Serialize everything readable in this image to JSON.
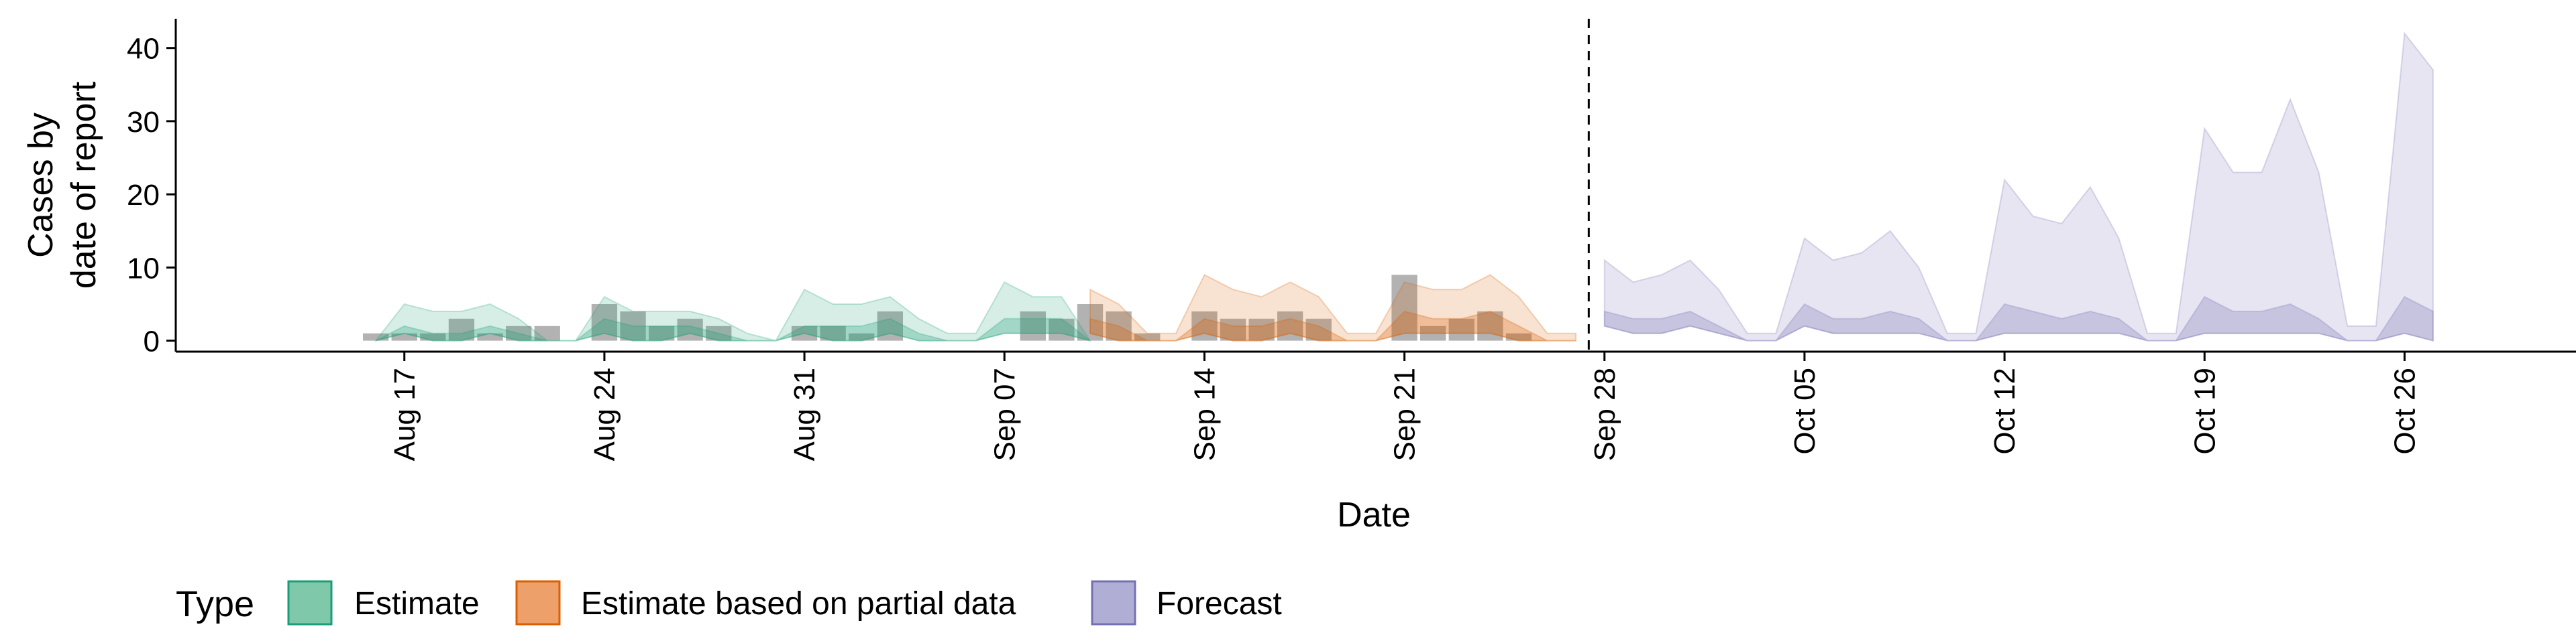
{
  "chart_data": {
    "type": "area",
    "xlabel": "Date",
    "ylabel": [
      "Cases by",
      "date of report"
    ],
    "ylim": [
      -1.5,
      44
    ],
    "yticks": [
      0,
      10,
      20,
      30,
      40
    ],
    "x_range": [
      "2020-08-09",
      "2020-11-01"
    ],
    "date_ticks": [
      {
        "date": "2020-08-17",
        "label": "Aug 17"
      },
      {
        "date": "2020-08-24",
        "label": "Aug 24"
      },
      {
        "date": "2020-08-31",
        "label": "Aug 31"
      },
      {
        "date": "2020-09-07",
        "label": "Sep 07"
      },
      {
        "date": "2020-09-14",
        "label": "Sep 14"
      },
      {
        "date": "2020-09-21",
        "label": "Sep 21"
      },
      {
        "date": "2020-09-28",
        "label": "Sep 28"
      },
      {
        "date": "2020-10-05",
        "label": "Oct 05"
      },
      {
        "date": "2020-10-12",
        "label": "Oct 12"
      },
      {
        "date": "2020-10-19",
        "label": "Oct 19"
      },
      {
        "date": "2020-10-26",
        "label": "Oct 26"
      }
    ],
    "forecast_date": "2020-09-27",
    "legend": {
      "title": "Type",
      "position": "bottom",
      "items": [
        {
          "label": "Estimate",
          "fill": "#7fc8a9",
          "stroke": "#1b9e77"
        },
        {
          "label": "Estimate based on partial data",
          "fill": "#eda06a",
          "stroke": "#d95f02"
        },
        {
          "label": "Forecast",
          "fill": "#b1aed6",
          "stroke": "#7570b3"
        }
      ]
    },
    "colors": {
      "Estimate": "#1b9e77",
      "Estimate based on partial data": "#d95f02",
      "Forecast": "#7570b3",
      "bars": "#7f7f7f"
    },
    "reported_cases": {
      "dates": [
        "2020-08-16",
        "2020-08-17",
        "2020-08-18",
        "2020-08-19",
        "2020-08-20",
        "2020-08-21",
        "2020-08-22",
        "2020-08-23",
        "2020-08-24",
        "2020-08-25",
        "2020-08-26",
        "2020-08-27",
        "2020-08-28",
        "2020-08-29",
        "2020-08-30",
        "2020-08-31",
        "2020-09-01",
        "2020-09-02",
        "2020-09-03",
        "2020-09-04",
        "2020-09-05",
        "2020-09-06",
        "2020-09-07",
        "2020-09-08",
        "2020-09-09",
        "2020-09-10",
        "2020-09-11",
        "2020-09-12",
        "2020-09-13",
        "2020-09-14",
        "2020-09-15",
        "2020-09-16",
        "2020-09-17",
        "2020-09-18",
        "2020-09-19",
        "2020-09-20",
        "2020-09-21",
        "2020-09-22",
        "2020-09-23",
        "2020-09-24",
        "2020-09-25",
        "2020-09-26"
      ],
      "values": [
        1,
        1,
        1,
        3,
        1,
        2,
        2,
        0,
        5,
        4,
        2,
        3,
        2,
        0,
        0,
        2,
        2,
        1,
        4,
        0,
        0,
        0,
        0,
        4,
        3,
        5,
        4,
        1,
        0,
        4,
        3,
        3,
        4,
        3,
        0,
        0,
        9,
        2,
        3,
        4,
        1,
        0
      ]
    },
    "series": [
      {
        "name": "Estimate",
        "dates": [
          "2020-08-16",
          "2020-08-17",
          "2020-08-18",
          "2020-08-19",
          "2020-08-20",
          "2020-08-21",
          "2020-08-22",
          "2020-08-23",
          "2020-08-24",
          "2020-08-25",
          "2020-08-26",
          "2020-08-27",
          "2020-08-28",
          "2020-08-29",
          "2020-08-30",
          "2020-08-31",
          "2020-09-01",
          "2020-09-02",
          "2020-09-03",
          "2020-09-04",
          "2020-09-05",
          "2020-09-06",
          "2020-09-07",
          "2020-09-08",
          "2020-09-09",
          "2020-09-10"
        ],
        "upper90": [
          0,
          5,
          4,
          4,
          5,
          3,
          0,
          0,
          6,
          4,
          4,
          4,
          3,
          1,
          0,
          7,
          5,
          5,
          6,
          3,
          1,
          1,
          8,
          6,
          6,
          0
        ],
        "upper50": [
          0,
          2,
          1,
          1,
          2,
          1,
          0,
          0,
          3,
          2,
          2,
          2,
          1,
          0,
          0,
          2,
          2,
          2,
          3,
          1,
          0,
          0,
          3,
          3,
          3,
          0
        ],
        "lower": [
          0,
          1,
          0,
          0,
          1,
          0,
          0,
          0,
          1,
          0,
          0,
          1,
          0,
          0,
          0,
          1,
          0,
          0,
          1,
          0,
          0,
          0,
          1,
          1,
          1,
          0
        ]
      },
      {
        "name": "Estimate based on partial data",
        "dates": [
          "2020-09-10",
          "2020-09-11",
          "2020-09-12",
          "2020-09-13",
          "2020-09-14",
          "2020-09-15",
          "2020-09-16",
          "2020-09-17",
          "2020-09-18",
          "2020-09-19",
          "2020-09-20",
          "2020-09-21",
          "2020-09-22",
          "2020-09-23",
          "2020-09-24",
          "2020-09-25",
          "2020-09-26",
          "2020-09-27"
        ],
        "upper90": [
          7,
          5,
          1,
          1,
          9,
          7,
          6,
          8,
          6,
          1,
          1,
          8,
          7,
          7,
          9,
          6,
          1,
          1
        ],
        "upper50": [
          3,
          2,
          0,
          0,
          3,
          2,
          2,
          3,
          2,
          0,
          0,
          4,
          3,
          3,
          4,
          2,
          0,
          0
        ],
        "lower": [
          1,
          0,
          0,
          0,
          1,
          0,
          0,
          1,
          0,
          0,
          0,
          1,
          1,
          1,
          1,
          0,
          0,
          0
        ]
      },
      {
        "name": "Forecast",
        "dates": [
          "2020-09-28",
          "2020-09-29",
          "2020-09-30",
          "2020-10-01",
          "2020-10-02",
          "2020-10-03",
          "2020-10-04",
          "2020-10-05",
          "2020-10-06",
          "2020-10-07",
          "2020-10-08",
          "2020-10-09",
          "2020-10-10",
          "2020-10-11",
          "2020-10-12",
          "2020-10-13",
          "2020-10-14",
          "2020-10-15",
          "2020-10-16",
          "2020-10-17",
          "2020-10-18",
          "2020-10-19",
          "2020-10-20",
          "2020-10-21",
          "2020-10-22",
          "2020-10-23",
          "2020-10-24",
          "2020-10-25",
          "2020-10-26",
          "2020-10-27"
        ],
        "upper90": [
          11,
          8,
          9,
          11,
          7,
          1,
          1,
          14,
          11,
          12,
          15,
          10,
          1,
          1,
          22,
          17,
          16,
          21,
          14,
          1,
          1,
          29,
          23,
          23,
          33,
          23,
          2,
          2,
          42,
          37
        ],
        "upper50": [
          4,
          3,
          3,
          4,
          2,
          0,
          0,
          5,
          3,
          3,
          4,
          3,
          0,
          0,
          5,
          4,
          3,
          4,
          3,
          0,
          0,
          6,
          4,
          4,
          5,
          3,
          0,
          0,
          6,
          4
        ],
        "lower": [
          2,
          1,
          1,
          2,
          1,
          0,
          0,
          2,
          1,
          1,
          1,
          1,
          0,
          0,
          1,
          1,
          1,
          1,
          1,
          0,
          0,
          1,
          1,
          1,
          1,
          1,
          0,
          0,
          1,
          0
        ]
      }
    ]
  }
}
